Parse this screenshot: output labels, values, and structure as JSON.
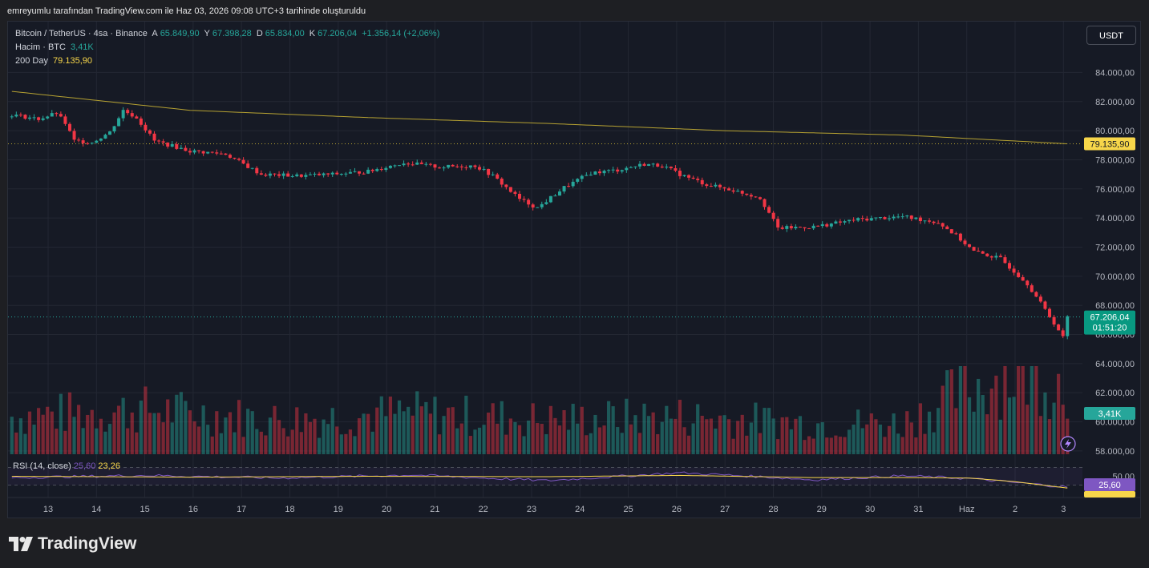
{
  "caption": "emreyumlu tarafından TradingView.com ile Haz 03, 2026 09:08 UTC+3 tarihinde oluşturuldu",
  "legend": {
    "symbol": "Bitcoin / TetherUS · 4sa · Binance",
    "open_label": "A",
    "open": "65.849,90",
    "high_label": "Y",
    "high": "67.398,28",
    "low_label": "D",
    "low": "65.834,00",
    "close_label": "K",
    "close": "67.206,04",
    "change": "+1.356,14 (+2,06%)",
    "volume_label": "Hacim · BTC",
    "volume": "3,41K",
    "ma_label": "200 Day",
    "ma": "79.135,90",
    "rsi_label": "RSI (14, close)",
    "rsi": "25,60",
    "rsi_ma": "23,26"
  },
  "currency_button": "USDT",
  "brand": "TradingView",
  "colors": {
    "up": "#26a69a",
    "down": "#f23645",
    "ma": "#b6a232",
    "rsi": "#7e57c2",
    "rsi_ma": "#f7d64a"
  },
  "chart_data": {
    "type": "candlestick",
    "y_ticks": [
      "84.000,00",
      "82.000,00",
      "80.000,00",
      "78.000,00",
      "76.000,00",
      "74.000,00",
      "72.000,00",
      "70.000,00",
      "68.000,00",
      "66.000,00",
      "64.000,00",
      "62.000,00",
      "60.000,00",
      "58.000,00"
    ],
    "ylim": [
      57500,
      86500
    ],
    "x_ticks": [
      "13",
      "14",
      "15",
      "16",
      "17",
      "18",
      "19",
      "20",
      "21",
      "22",
      "23",
      "24",
      "25",
      "26",
      "27",
      "28",
      "29",
      "30",
      "31",
      "Haz",
      "2",
      "3"
    ],
    "price_labels": {
      "ma": "79.135,90",
      "last": "67.206,04",
      "countdown": "01:51:20",
      "volume": "3,41K",
      "rsi": "25,60",
      "rsi_ma": "23,26"
    },
    "rsi_ticks": [
      "50,00"
    ],
    "rsi_ylim": [
      0,
      100
    ],
    "ohlc_anchor_closes": [
      [
        0,
        81100
      ],
      [
        6,
        80800
      ],
      [
        10,
        81200
      ],
      [
        12,
        80500
      ],
      [
        14,
        79300
      ],
      [
        18,
        79200
      ],
      [
        22,
        79900
      ],
      [
        25,
        81400
      ],
      [
        28,
        80900
      ],
      [
        32,
        79300
      ],
      [
        40,
        78600
      ],
      [
        48,
        78400
      ],
      [
        56,
        77000
      ],
      [
        64,
        76900
      ],
      [
        72,
        77000
      ],
      [
        80,
        77200
      ],
      [
        88,
        77800
      ],
      [
        96,
        77500
      ],
      [
        104,
        77600
      ],
      [
        108,
        76900
      ],
      [
        114,
        75300
      ],
      [
        118,
        74700
      ],
      [
        124,
        76100
      ],
      [
        130,
        77100
      ],
      [
        136,
        77300
      ],
      [
        142,
        77700
      ],
      [
        146,
        77600
      ],
      [
        150,
        77000
      ],
      [
        156,
        76300
      ],
      [
        162,
        75900
      ],
      [
        168,
        75400
      ],
      [
        172,
        73300
      ],
      [
        180,
        73400
      ],
      [
        190,
        73900
      ],
      [
        200,
        74100
      ],
      [
        208,
        73700
      ],
      [
        212,
        72800
      ],
      [
        216,
        71700
      ],
      [
        222,
        71200
      ],
      [
        228,
        69500
      ],
      [
        232,
        67700
      ],
      [
        234,
        66800
      ],
      [
        236,
        65800
      ],
      [
        237,
        67206
      ]
    ],
    "ma_anchors": [
      [
        0,
        82700
      ],
      [
        40,
        81400
      ],
      [
        80,
        80900
      ],
      [
        120,
        80500
      ],
      [
        160,
        80000
      ],
      [
        200,
        79700
      ],
      [
        237,
        79100
      ]
    ],
    "volume_anchors": [
      [
        0,
        1.1
      ],
      [
        30,
        1.3
      ],
      [
        60,
        1.0
      ],
      [
        90,
        1.2
      ],
      [
        120,
        1.0
      ],
      [
        150,
        1.1
      ],
      [
        180,
        0.9
      ],
      [
        200,
        0.9
      ],
      [
        210,
        1.6
      ],
      [
        220,
        2.2
      ],
      [
        230,
        2.5
      ],
      [
        237,
        1.9
      ]
    ],
    "rsi_anchors": [
      [
        0,
        47
      ],
      [
        30,
        52
      ],
      [
        60,
        46
      ],
      [
        90,
        53
      ],
      [
        120,
        40
      ],
      [
        150,
        58
      ],
      [
        170,
        48
      ],
      [
        180,
        42
      ],
      [
        200,
        51
      ],
      [
        215,
        45
      ],
      [
        225,
        36
      ],
      [
        237,
        25.6
      ]
    ],
    "rsi_ma_anchors": [
      [
        0,
        50
      ],
      [
        40,
        48
      ],
      [
        80,
        50
      ],
      [
        120,
        49
      ],
      [
        150,
        52
      ],
      [
        180,
        47
      ],
      [
        200,
        47
      ],
      [
        215,
        46
      ],
      [
        225,
        38
      ],
      [
        237,
        23.26
      ]
    ]
  }
}
